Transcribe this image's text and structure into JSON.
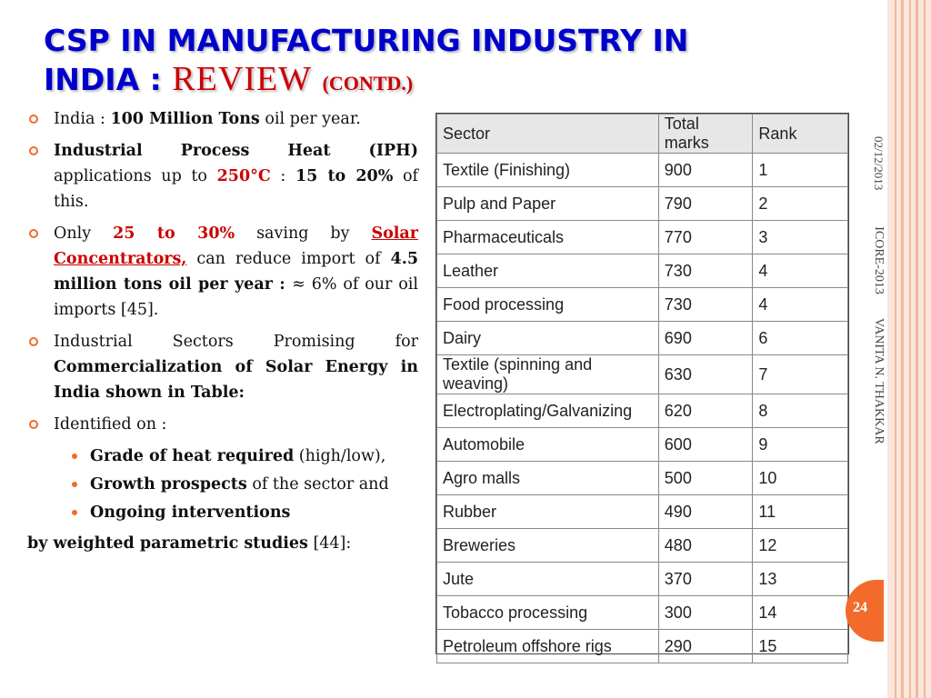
{
  "title": {
    "line1": "CSP IN MANUFACTURING INDUSTRY IN",
    "line2": "INDIA :",
    "review": "REVIEW",
    "contd": "(CONTD.)"
  },
  "bullets": {
    "b1_pre": "India : ",
    "b1_bold": "100 Million Tons",
    "b1_post": " oil per year.",
    "b2_bold": "Industrial Process Heat (IPH)",
    "b2_mid": " applications up to ",
    "b2_red": "250°C",
    "b2_colon": " : ",
    "b2_bold2": "15 to 20%",
    "b2_post": " of this.",
    "b3_pre": "Only ",
    "b3_red": "25 to 30%",
    "b3_mid": " saving by ",
    "b3_link": "Solar Concentrators,",
    "b3_mid2": " can reduce import of ",
    "b3_bold": "4.5 million tons oil per year : ",
    "b3_post": " ≈ 6% of our oil imports [45].",
    "b4_pre": "Industrial Sectors Promising for ",
    "b4_bold": "Commercialization of Solar Energy in India shown in Table:",
    "b5": "Identified on :",
    "sub1_bold": "Grade of heat required",
    "sub1_post": " (high/low),",
    "sub2_bold": "Growth prospects",
    "sub2_post": " of the sector and",
    "sub3_bold": "Ongoing interventions",
    "last_bold": "by weighted parametric studies",
    "last_post": " [44]:"
  },
  "table": {
    "headers": [
      "Sector",
      "Total marks",
      "Rank"
    ],
    "rows": [
      [
        "Textile (Finishing)",
        "900",
        "1"
      ],
      [
        "Pulp and Paper",
        "790",
        "2"
      ],
      [
        "Pharmaceuticals",
        "770",
        "3"
      ],
      [
        "Leather",
        "730",
        "4"
      ],
      [
        "Food processing",
        "730",
        "4"
      ],
      [
        "Dairy",
        "690",
        "6"
      ],
      [
        "Textile (spinning and weaving)",
        "630",
        "7"
      ],
      [
        "Electroplating/Galvanizing",
        "620",
        "8"
      ],
      [
        "Automobile",
        "600",
        "9"
      ],
      [
        "Agro malls",
        "500",
        "10"
      ],
      [
        "Rubber",
        "490",
        "11"
      ],
      [
        "Breweries",
        "480",
        "12"
      ],
      [
        "Jute",
        "370",
        "13"
      ],
      [
        "Tobacco processing",
        "300",
        "14"
      ],
      [
        "Petroleum offshore rigs",
        "290",
        "15"
      ]
    ]
  },
  "footer": {
    "date": "02/12/2013",
    "conference": "ICORE-2013",
    "author": "VANITA N. THAKKAR",
    "page": "24"
  },
  "colors": {
    "title_blue": "#0000cc",
    "accent_red": "#cc0000",
    "bullet_orange": "#f26b2a"
  }
}
